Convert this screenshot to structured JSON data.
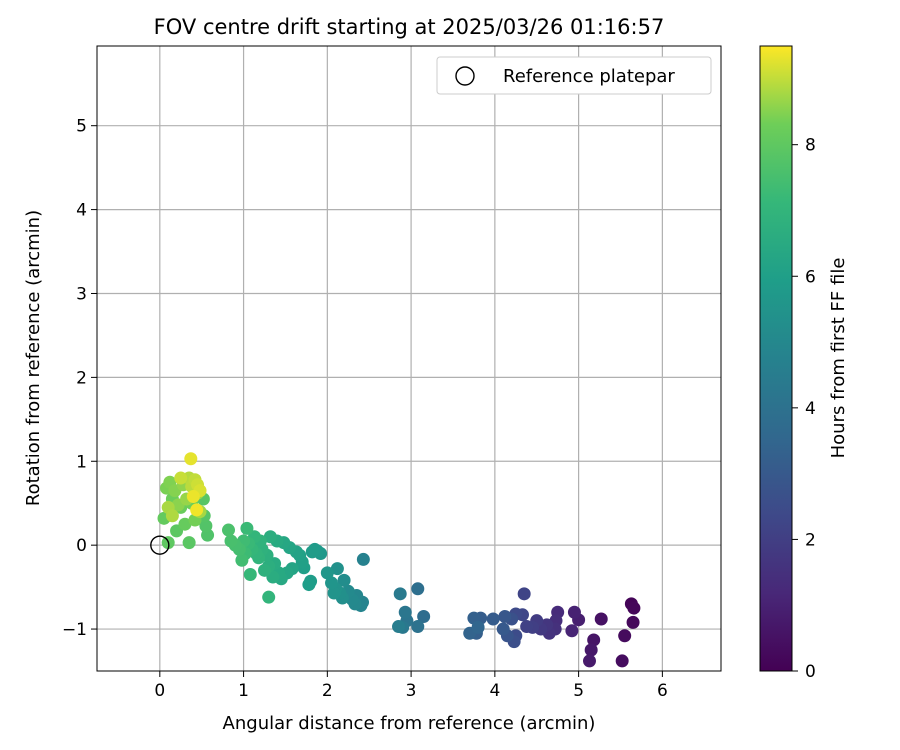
{
  "chart_data": {
    "type": "scatter",
    "title": "FOV centre drift starting at 2025/03/26 01:16:57",
    "xlabel": "Angular distance from reference (arcmin)",
    "ylabel": "Rotation from reference (arcmin)",
    "xlim": [
      -0.75,
      6.7
    ],
    "ylim": [
      -1.5,
      5.95
    ],
    "xticks": [
      0,
      1,
      2,
      3,
      4,
      5,
      6
    ],
    "yticks": [
      -1,
      0,
      1,
      2,
      3,
      4,
      5
    ],
    "xtick_labels": [
      "0",
      "1",
      "2",
      "3",
      "4",
      "5",
      "6"
    ],
    "ytick_labels": [
      "−1",
      "0",
      "1",
      "2",
      "3",
      "4",
      "5"
    ],
    "grid": true,
    "legend": {
      "placement": "top-right",
      "entries": [
        "Reference platepar"
      ]
    },
    "reference_point": {
      "x": 0,
      "y": 0
    },
    "colorbar": {
      "label": "Hours from first FF file",
      "colormap": "viridis",
      "range": [
        0,
        9.5
      ],
      "ticks": [
        0,
        2,
        4,
        6,
        8
      ],
      "tick_labels": [
        "0",
        "2",
        "4",
        "6",
        "8"
      ]
    },
    "points": [
      {
        "x": 5.63,
        "y": -0.7,
        "h": 0.1
      },
      {
        "x": 5.66,
        "y": -0.75,
        "h": 0.15
      },
      {
        "x": 5.65,
        "y": -0.92,
        "h": 0.2
      },
      {
        "x": 5.55,
        "y": -1.08,
        "h": 0.3
      },
      {
        "x": 5.52,
        "y": -1.38,
        "h": 0.35
      },
      {
        "x": 5.27,
        "y": -0.88,
        "h": 0.5
      },
      {
        "x": 5.18,
        "y": -1.13,
        "h": 0.6
      },
      {
        "x": 5.15,
        "y": -1.25,
        "h": 0.7
      },
      {
        "x": 5.13,
        "y": -1.38,
        "h": 0.75
      },
      {
        "x": 5.0,
        "y": -0.89,
        "h": 0.9
      },
      {
        "x": 4.95,
        "y": -0.8,
        "h": 1.0
      },
      {
        "x": 4.92,
        "y": -1.02,
        "h": 1.1
      },
      {
        "x": 4.75,
        "y": -0.8,
        "h": 1.3
      },
      {
        "x": 4.73,
        "y": -0.9,
        "h": 1.4
      },
      {
        "x": 4.72,
        "y": -1.0,
        "h": 1.5
      },
      {
        "x": 4.65,
        "y": -1.05,
        "h": 1.6
      },
      {
        "x": 4.62,
        "y": -0.95,
        "h": 1.7
      },
      {
        "x": 4.55,
        "y": -1.0,
        "h": 1.8
      },
      {
        "x": 4.5,
        "y": -0.9,
        "h": 1.9
      },
      {
        "x": 4.45,
        "y": -0.98,
        "h": 2.0
      },
      {
        "x": 4.38,
        "y": -0.97,
        "h": 2.1
      },
      {
        "x": 4.35,
        "y": -0.58,
        "h": 2.2
      },
      {
        "x": 4.33,
        "y": -0.83,
        "h": 2.3
      },
      {
        "x": 4.25,
        "y": -0.82,
        "h": 2.4
      },
      {
        "x": 4.25,
        "y": -1.08,
        "h": 2.5
      },
      {
        "x": 4.23,
        "y": -1.15,
        "h": 2.6
      },
      {
        "x": 4.2,
        "y": -0.88,
        "h": 2.7
      },
      {
        "x": 4.15,
        "y": -1.08,
        "h": 2.8
      },
      {
        "x": 4.12,
        "y": -0.85,
        "h": 2.9
      },
      {
        "x": 4.1,
        "y": -1.0,
        "h": 3.0
      },
      {
        "x": 3.98,
        "y": -0.88,
        "h": 3.1
      },
      {
        "x": 3.83,
        "y": -0.87,
        "h": 3.15
      },
      {
        "x": 3.78,
        "y": -1.05,
        "h": 3.2
      },
      {
        "x": 3.75,
        "y": -0.87,
        "h": 3.3
      },
      {
        "x": 3.7,
        "y": -1.05,
        "h": 3.4
      },
      {
        "x": 3.8,
        "y": -0.98,
        "h": 3.5
      },
      {
        "x": 3.15,
        "y": -0.85,
        "h": 3.8
      },
      {
        "x": 3.08,
        "y": -0.52,
        "h": 3.9
      },
      {
        "x": 3.08,
        "y": -0.97,
        "h": 4.0
      },
      {
        "x": 2.95,
        "y": -0.9,
        "h": 4.1
      },
      {
        "x": 2.93,
        "y": -0.8,
        "h": 4.2
      },
      {
        "x": 2.9,
        "y": -0.98,
        "h": 4.3
      },
      {
        "x": 2.87,
        "y": -0.58,
        "h": 4.4
      },
      {
        "x": 2.85,
        "y": -0.97,
        "h": 4.5
      },
      {
        "x": 2.43,
        "y": -0.17,
        "h": 4.7
      },
      {
        "x": 2.42,
        "y": -0.68,
        "h": 4.8
      },
      {
        "x": 2.4,
        "y": -0.72,
        "h": 4.85
      },
      {
        "x": 2.35,
        "y": -0.6,
        "h": 4.9
      },
      {
        "x": 2.33,
        "y": -0.7,
        "h": 5.0
      },
      {
        "x": 2.3,
        "y": -0.65,
        "h": 5.05
      },
      {
        "x": 2.25,
        "y": -0.55,
        "h": 5.1
      },
      {
        "x": 2.2,
        "y": -0.42,
        "h": 5.2
      },
      {
        "x": 2.18,
        "y": -0.63,
        "h": 5.3
      },
      {
        "x": 2.15,
        "y": -0.57,
        "h": 5.35
      },
      {
        "x": 2.12,
        "y": -0.28,
        "h": 5.4
      },
      {
        "x": 2.1,
        "y": -0.52,
        "h": 5.45
      },
      {
        "x": 2.08,
        "y": -0.57,
        "h": 5.5
      },
      {
        "x": 2.05,
        "y": -0.45,
        "h": 5.55
      },
      {
        "x": 2.0,
        "y": -0.33,
        "h": 5.6
      },
      {
        "x": 1.92,
        "y": -0.1,
        "h": 5.7
      },
      {
        "x": 1.88,
        "y": -0.07,
        "h": 5.75
      },
      {
        "x": 1.85,
        "y": -0.05,
        "h": 5.8
      },
      {
        "x": 1.82,
        "y": -0.08,
        "h": 5.85
      },
      {
        "x": 1.8,
        "y": -0.43,
        "h": 5.9
      },
      {
        "x": 1.78,
        "y": -0.47,
        "h": 5.95
      },
      {
        "x": 1.72,
        "y": -0.27,
        "h": 6.0
      },
      {
        "x": 1.7,
        "y": -0.2,
        "h": 6.05
      },
      {
        "x": 1.67,
        "y": -0.12,
        "h": 6.1
      },
      {
        "x": 1.63,
        "y": -0.08,
        "h": 6.15
      },
      {
        "x": 1.58,
        "y": -0.28,
        "h": 6.2
      },
      {
        "x": 1.55,
        "y": -0.03,
        "h": 6.25
      },
      {
        "x": 1.52,
        "y": -0.33,
        "h": 6.3
      },
      {
        "x": 1.48,
        "y": 0.03,
        "h": 6.35
      },
      {
        "x": 1.45,
        "y": -0.4,
        "h": 6.4
      },
      {
        "x": 1.42,
        "y": -0.33,
        "h": 6.45
      },
      {
        "x": 1.4,
        "y": 0.05,
        "h": 6.5
      },
      {
        "x": 1.37,
        "y": -0.22,
        "h": 6.55
      },
      {
        "x": 1.35,
        "y": -0.38,
        "h": 6.6
      },
      {
        "x": 1.32,
        "y": 0.1,
        "h": 6.65
      },
      {
        "x": 1.3,
        "y": -0.25,
        "h": 6.7
      },
      {
        "x": 1.28,
        "y": -0.12,
        "h": 6.75
      },
      {
        "x": 1.25,
        "y": -0.3,
        "h": 6.8
      },
      {
        "x": 1.22,
        "y": -0.05,
        "h": 6.85
      },
      {
        "x": 1.2,
        "y": 0.05,
        "h": 6.9
      },
      {
        "x": 1.18,
        "y": -0.15,
        "h": 6.95
      },
      {
        "x": 1.15,
        "y": -0.1,
        "h": 7.0
      },
      {
        "x": 1.13,
        "y": 0.1,
        "h": 7.05
      },
      {
        "x": 1.1,
        "y": -0.05,
        "h": 7.1
      },
      {
        "x": 1.08,
        "y": -0.35,
        "h": 7.15
      },
      {
        "x": 1.06,
        "y": 0.02,
        "h": 7.2
      },
      {
        "x": 1.04,
        "y": 0.2,
        "h": 7.25
      },
      {
        "x": 1.02,
        "y": -0.1,
        "h": 7.3
      },
      {
        "x": 1.0,
        "y": 0.05,
        "h": 7.35
      },
      {
        "x": 0.98,
        "y": -0.18,
        "h": 7.4
      },
      {
        "x": 0.95,
        "y": -0.05,
        "h": 7.45
      },
      {
        "x": 0.9,
        "y": 0.0,
        "h": 7.5
      },
      {
        "x": 0.85,
        "y": 0.05,
        "h": 7.55
      },
      {
        "x": 0.82,
        "y": 0.18,
        "h": 7.6
      },
      {
        "x": 1.3,
        "y": -0.62,
        "h": 7.0
      },
      {
        "x": 0.57,
        "y": 0.12,
        "h": 7.7
      },
      {
        "x": 0.55,
        "y": 0.23,
        "h": 7.75
      },
      {
        "x": 0.53,
        "y": 0.35,
        "h": 7.8
      },
      {
        "x": 0.52,
        "y": 0.55,
        "h": 7.85
      },
      {
        "x": 0.35,
        "y": 0.03,
        "h": 7.9
      },
      {
        "x": 0.2,
        "y": 0.17,
        "h": 7.95
      },
      {
        "x": 0.1,
        "y": 0.03,
        "h": 8.0
      },
      {
        "x": 0.05,
        "y": 0.32,
        "h": 8.1
      },
      {
        "x": 0.3,
        "y": 0.25,
        "h": 8.15
      },
      {
        "x": 0.25,
        "y": 0.45,
        "h": 8.2
      },
      {
        "x": 0.15,
        "y": 0.55,
        "h": 8.25
      },
      {
        "x": 0.38,
        "y": 0.5,
        "h": 8.3
      },
      {
        "x": 0.42,
        "y": 0.3,
        "h": 8.35
      },
      {
        "x": 0.08,
        "y": 0.68,
        "h": 8.4
      },
      {
        "x": 0.12,
        "y": 0.75,
        "h": 8.45
      },
      {
        "x": 0.18,
        "y": 0.65,
        "h": 8.5
      },
      {
        "x": 0.22,
        "y": 0.48,
        "h": 8.55
      },
      {
        "x": 0.28,
        "y": 0.72,
        "h": 8.6
      },
      {
        "x": 0.32,
        "y": 0.55,
        "h": 8.65
      },
      {
        "x": 0.45,
        "y": 0.62,
        "h": 8.7
      },
      {
        "x": 0.48,
        "y": 0.4,
        "h": 8.75
      },
      {
        "x": 0.1,
        "y": 0.45,
        "h": 8.8
      },
      {
        "x": 0.15,
        "y": 0.35,
        "h": 8.85
      },
      {
        "x": 0.35,
        "y": 0.8,
        "h": 8.9
      },
      {
        "x": 0.38,
        "y": 0.7,
        "h": 8.95
      },
      {
        "x": 0.42,
        "y": 0.78,
        "h": 9.0
      },
      {
        "x": 0.25,
        "y": 0.8,
        "h": 9.05
      },
      {
        "x": 0.45,
        "y": 0.72,
        "h": 9.1
      },
      {
        "x": 0.48,
        "y": 0.65,
        "h": 9.2
      },
      {
        "x": 0.37,
        "y": 1.03,
        "h": 9.3
      },
      {
        "x": 0.4,
        "y": 0.58,
        "h": 9.35
      },
      {
        "x": 0.44,
        "y": 0.42,
        "h": 9.4
      }
    ]
  }
}
